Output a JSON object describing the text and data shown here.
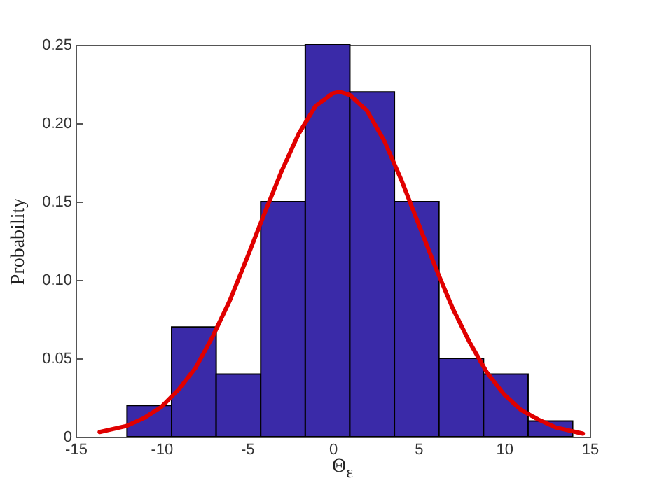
{
  "chart_data": {
    "type": "histogram",
    "xlabel": "Θ$_{ε}$",
    "ylabel": "Probability",
    "bins": [
      -12,
      -9.4,
      -6.8,
      -4.2,
      -1.6,
      1.0,
      3.6,
      6.2,
      8.8,
      11.4,
      14.0
    ],
    "values": [
      0.02,
      0.07,
      0.04,
      0.15,
      0.25,
      0.22,
      0.15,
      0.05,
      0.04,
      0.01
    ],
    "color": "#3a2aa8",
    "series": [
      {
        "type": "line",
        "color": "#e00000",
        "x": [
          -13.6,
          -12,
          -11,
          -10,
          -9,
          -8,
          -7,
          -6,
          -5,
          -4,
          -3,
          -2,
          -1,
          0,
          0.4,
          1,
          2,
          3,
          4,
          5,
          6,
          7,
          8,
          9,
          10,
          11,
          12,
          13,
          14.6
        ],
        "values": [
          0.003,
          0.007,
          0.012,
          0.019,
          0.03,
          0.044,
          0.064,
          0.087,
          0.114,
          0.142,
          0.169,
          0.193,
          0.211,
          0.219,
          0.22,
          0.218,
          0.208,
          0.189,
          0.164,
          0.136,
          0.108,
          0.082,
          0.06,
          0.041,
          0.027,
          0.017,
          0.011,
          0.006,
          0.002
        ]
      }
    ],
    "xlim": [
      -15,
      15
    ],
    "xticks": [
      -15,
      -10,
      -5,
      0,
      5,
      10,
      15
    ],
    "ylim": [
      0,
      0.25
    ],
    "yticks": [
      0,
      0.05,
      {
        "value": 0.1,
        "label": "0.10"
      },
      0.15,
      {
        "value": 0.2,
        "label": "0.20"
      },
      0.25
    ],
    "grid": false
  }
}
